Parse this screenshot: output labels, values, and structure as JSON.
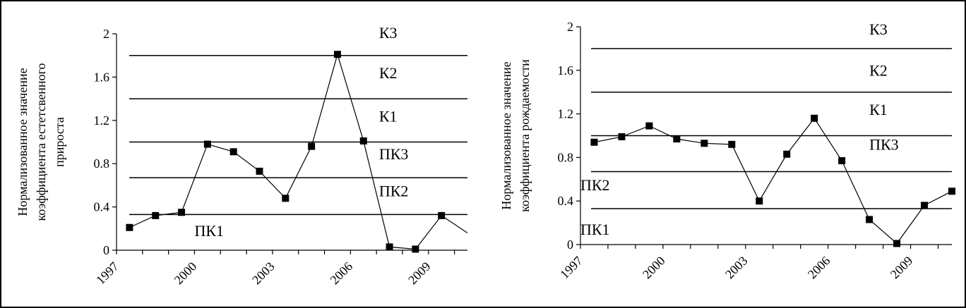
{
  "chart_data": [
    {
      "type": "line",
      "ylabel_lines": [
        "Нормализованное значение",
        "коэффициента естетсвенного",
        "прироста"
      ],
      "ylim": [
        0,
        2
      ],
      "yticks": [
        "0",
        "0.4",
        "0.8",
        "1.2",
        "1.6",
        "2"
      ],
      "xlim": [
        1997,
        2010.5
      ],
      "xticks": [
        "1997",
        "2000",
        "2003",
        "2006",
        "2009"
      ],
      "levels": [
        0.33,
        0.67,
        1.0,
        1.4,
        1.8
      ],
      "zone_labels": [
        {
          "text": "ПК1",
          "x": 2000.0,
          "y": 0.13
        },
        {
          "text": "ПК2",
          "x": 2007.1,
          "y": 0.5
        },
        {
          "text": "ПК3",
          "x": 2007.1,
          "y": 0.84
        },
        {
          "text": "К1",
          "x": 2007.1,
          "y": 1.19
        },
        {
          "text": "К2",
          "x": 2007.1,
          "y": 1.59
        },
        {
          "text": "К3",
          "x": 2007.1,
          "y": 1.96
        }
      ],
      "series": [
        {
          "x": [
            1997.5,
            1998.5,
            1999.5,
            2000.5,
            2001.5,
            2002.5,
            2003.5,
            2004.5,
            2005.5,
            2006.5,
            2007.5,
            2008.5,
            2009.5,
            2010.5
          ],
          "values": [
            0.21,
            0.32,
            0.35,
            0.98,
            0.91,
            0.73,
            0.48,
            0.96,
            1.81,
            1.01,
            0.03,
            0.01,
            0.32,
            0.16
          ],
          "markers": [
            true,
            true,
            true,
            true,
            true,
            true,
            true,
            true,
            true,
            true,
            true,
            true,
            true,
            false
          ]
        }
      ],
      "grid": false
    },
    {
      "type": "line",
      "ylabel_lines": [
        "Нормализованное значение",
        "коэффициента рождаемости"
      ],
      "ylim": [
        0,
        2
      ],
      "yticks": [
        "0",
        "0.4",
        "0.8",
        "1.2",
        "1.6",
        "2"
      ],
      "xlim": [
        1997,
        2010.5
      ],
      "xticks": [
        "1997",
        "2000",
        "2003",
        "2006",
        "2009"
      ],
      "levels": [
        0.33,
        0.67,
        1.0,
        1.4,
        1.8
      ],
      "zone_labels": [
        {
          "text": "ПК1",
          "x": 1997.0,
          "y": 0.09
        },
        {
          "text": "ПК2",
          "x": 1997.0,
          "y": 0.5
        },
        {
          "text": "ПК3",
          "x": 2007.5,
          "y": 0.87
        },
        {
          "text": "К1",
          "x": 2007.5,
          "y": 1.19
        },
        {
          "text": "К2",
          "x": 2007.5,
          "y": 1.55
        },
        {
          "text": "К3",
          "x": 2007.5,
          "y": 1.93
        }
      ],
      "series": [
        {
          "x": [
            1997.5,
            1998.5,
            1999.5,
            2000.5,
            2001.5,
            2002.5,
            2003.5,
            2004.5,
            2005.5,
            2006.5,
            2007.5,
            2008.5,
            2009.5,
            2010.5
          ],
          "values": [
            0.94,
            0.99,
            1.09,
            0.97,
            0.93,
            0.92,
            0.4,
            0.83,
            1.16,
            0.77,
            0.23,
            0.01,
            0.36,
            0.49
          ],
          "markers": [
            true,
            true,
            true,
            true,
            true,
            true,
            true,
            true,
            true,
            true,
            true,
            true,
            true,
            true
          ]
        }
      ],
      "grid": false
    }
  ]
}
